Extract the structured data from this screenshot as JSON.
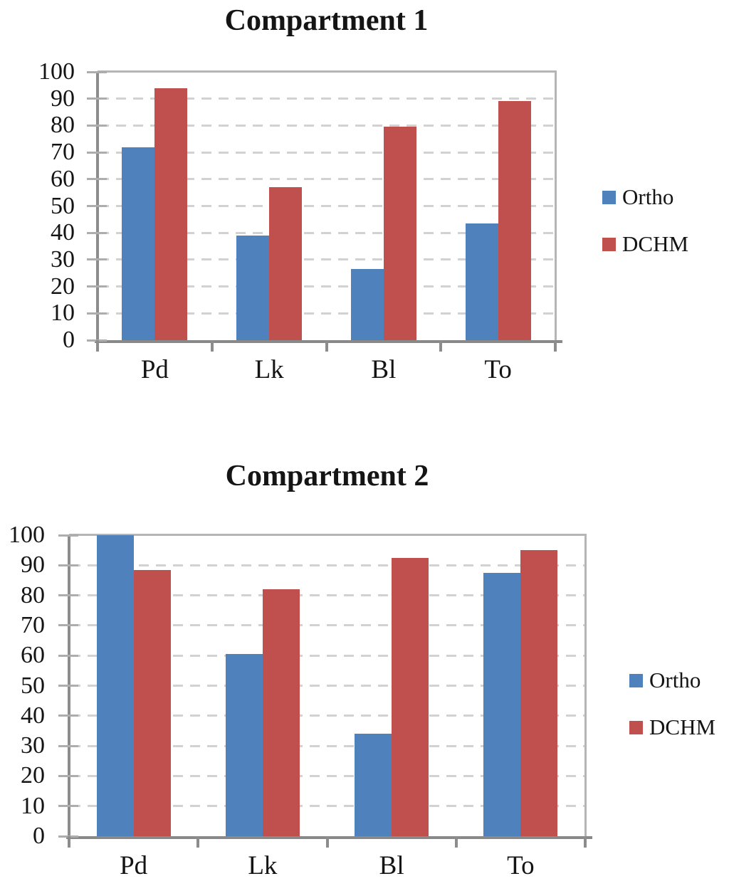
{
  "figure": {
    "background": "#FFFFFF"
  },
  "palette": {
    "ortho_blue": "#4F81BD",
    "dchm_red": "#C0504D",
    "axis_gray": "#8C8C8C",
    "frame_gray": "#B5B5B5",
    "grid_gray": "#D2D2D2",
    "text_color": "#141414"
  },
  "chart_data": [
    {
      "type": "bar",
      "title": "Compartment 1",
      "categories": [
        "Pd",
        "Lk",
        "Bl",
        "To"
      ],
      "series": [
        {
          "name": "Ortho",
          "color": "#4F81BD",
          "values": [
            72,
            39,
            26.5,
            43.5
          ]
        },
        {
          "name": "DCHM",
          "color": "#C0504D",
          "values": [
            94,
            57,
            79.5,
            89
          ]
        }
      ],
      "ylim": [
        0,
        100
      ],
      "yticks": [
        0,
        10,
        20,
        30,
        40,
        50,
        60,
        70,
        80,
        90,
        100
      ],
      "grid": "horizontal-dashed",
      "legend": {
        "position": "right",
        "entries": [
          "Ortho",
          "DCHM"
        ]
      }
    },
    {
      "type": "bar",
      "title": "Compartment 2",
      "categories": [
        "Pd",
        "Lk",
        "Bl",
        "To"
      ],
      "series": [
        {
          "name": "Ortho",
          "color": "#4F81BD",
          "values": [
            100,
            60.5,
            34,
            87.5
          ]
        },
        {
          "name": "DCHM",
          "color": "#C0504D",
          "values": [
            88.5,
            82,
            92.5,
            95
          ]
        }
      ],
      "ylim": [
        0,
        100
      ],
      "yticks": [
        0,
        10,
        20,
        30,
        40,
        50,
        60,
        70,
        80,
        90,
        100
      ],
      "grid": "horizontal-dashed",
      "legend": {
        "position": "right",
        "entries": [
          "Ortho",
          "DCHM"
        ]
      }
    }
  ]
}
